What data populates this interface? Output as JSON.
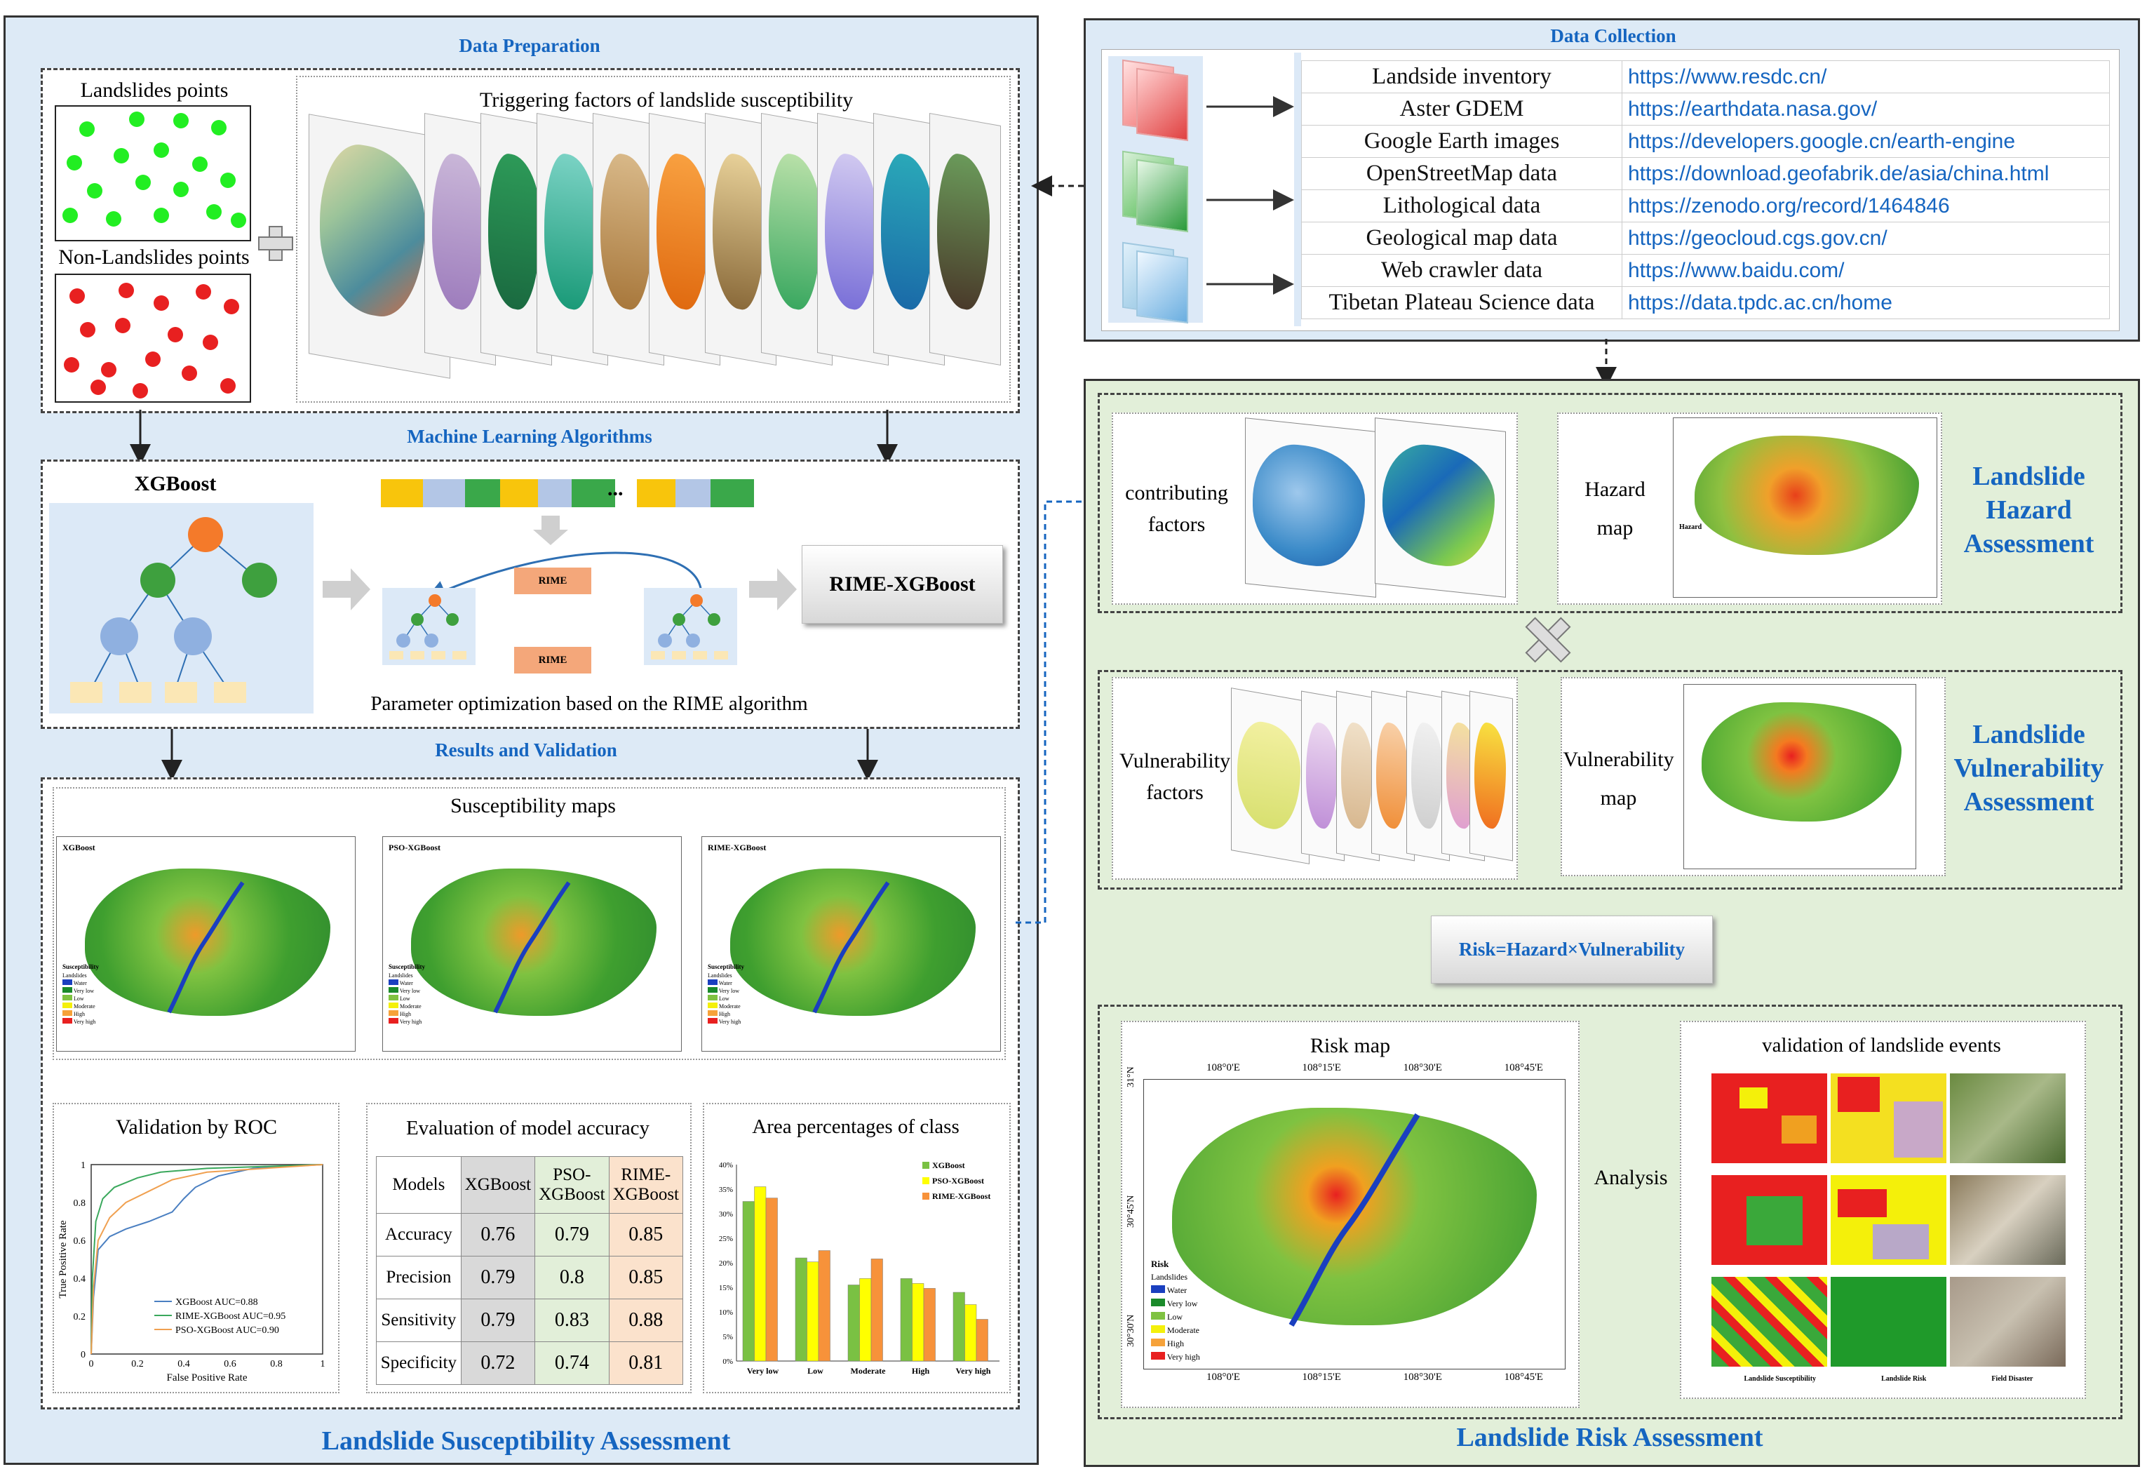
{
  "left": {
    "data_preparation": "Data Preparation",
    "landslide_points": "Landslides points",
    "non_landslide_points": "Non-Landslides points",
    "triggering_factors": "Triggering factors of landslide susceptibility",
    "ml_algorithms": "Machine Learning Algorithms",
    "xgboost": "XGBoost",
    "ellipsis": "...",
    "rime1": "RIME",
    "rime2": "RIME",
    "rime_xgboost": "RIME-XGBoost",
    "param_opt": "Parameter optimization  based on the RIME algorithm",
    "results_validation": "Results and Validation",
    "susceptibility_maps": "Susceptibility maps",
    "map_titles": [
      "XGBoost",
      "PSO-XGBoost",
      "RIME-XGBoost"
    ],
    "map_legend_title": "Susceptibility",
    "map_legend": [
      "Landslides",
      "Water",
      "Very low",
      "Low",
      "Moderate",
      "High",
      "Very high"
    ],
    "footer": "Landslide Susceptibility Assessment"
  },
  "roc": {
    "title": "Validation by ROC",
    "xlabel": "False Positive Rate",
    "ylabel": "True Positive Rate",
    "xticks": [
      "0",
      "0.2",
      "0.4",
      "0.6",
      "0.8",
      "1"
    ],
    "yticks": [
      "0",
      "0.2",
      "0.4",
      "0.6",
      "0.8",
      "1"
    ],
    "legend": [
      "XGBoost  AUC=0.88",
      "RIME-XGBoost  AUC=0.95",
      "PSO-XGBoost  AUC=0.90"
    ],
    "colors": [
      "#4a7fc1",
      "#3aa85c",
      "#f0a050"
    ]
  },
  "accuracy": {
    "title": "Evaluation of model accuracy",
    "headers": [
      "Models",
      "XGBoost",
      "PSO-\nXGBoost",
      "RIME-\nXGBoost"
    ],
    "rows": [
      [
        "Accuracy",
        "0.76",
        "0.79",
        "0.85"
      ],
      [
        "Precision",
        "0.79",
        "0.8",
        "0.85"
      ],
      [
        "Sensitivity",
        "0.79",
        "0.83",
        "0.88"
      ],
      [
        "Specificity",
        "0.72",
        "0.74",
        "0.81"
      ]
    ]
  },
  "chart_data": {
    "type": "bar",
    "title": "Area percentages of class",
    "categories": [
      "Very low",
      "Low",
      "Moderate",
      "High",
      "Very high"
    ],
    "series": [
      {
        "name": "XGBoost",
        "values": [
          32.5,
          21,
          15.5,
          16.8,
          14
        ],
        "color": "#7ac143"
      },
      {
        "name": "PSO-XGBoost",
        "values": [
          35.5,
          20.2,
          16.8,
          15.8,
          11.5
        ],
        "color": "#ffff00"
      },
      {
        "name": "RIME-XGBoost",
        "values": [
          33.2,
          22.5,
          20.8,
          14.8,
          8.5
        ],
        "color": "#f7923a"
      }
    ],
    "yticks": [
      "0%",
      "5%",
      "10%",
      "15%",
      "20%",
      "25%",
      "30%",
      "35%",
      "40%"
    ],
    "ylim": [
      0,
      40
    ]
  },
  "collection": {
    "title": "Data Collection",
    "sources": [
      {
        "name": "Landside inventory",
        "url": "https://www.resdc.cn/"
      },
      {
        "name": "Aster GDEM",
        "url": "https://earthdata.nasa.gov/"
      },
      {
        "name": "Google Earth images",
        "url": "https://developers.google.cn/earth-engine"
      },
      {
        "name": "OpenStreetMap data",
        "url": "https://download.geofabrik.de/asia/china.html"
      },
      {
        "name": "Lithological data",
        "url": "https://zenodo.org/record/1464846"
      },
      {
        "name": "Geological map data",
        "url": "https://geocloud.cgs.gov.cn/"
      },
      {
        "name": "Web crawler data",
        "url": "https://www.baidu.com/"
      },
      {
        "name": "Tibetan Plateau Science data",
        "url": "https://data.tpdc.ac.cn/home"
      }
    ]
  },
  "risk": {
    "contributing_factors": "contributing\nfactors",
    "hazard_map": "Hazard\nmap",
    "hazard_assessment": "Landslide\nHazard\nAssessment",
    "hazard_legend_title": "Hazard",
    "vulnerability_factors": "Vulnerability\nfactors",
    "vulnerability_map": "Vulnerability\nmap",
    "vulnerability_assessment": "Landslide\nVulnerability\nAssessment",
    "formula": "Risk=Hazard×Vulnerability",
    "risk_map": "Risk map",
    "risk_legend_title": "Risk",
    "risk_legend": [
      "Landslides",
      "Water",
      "Very low",
      "Low",
      "Moderate",
      "High",
      "Very high"
    ],
    "risk_top_ticks": [
      "108°0'E",
      "108°15'E",
      "108°30'E",
      "108°45'E"
    ],
    "risk_bottom_ticks": [
      "108°0'E",
      "108°15'E",
      "108°30'E",
      "108°45'E"
    ],
    "risk_left_ticks": [
      "31°N",
      "30°45'N",
      "30°30'N"
    ],
    "analysis": "Analysis",
    "validation_title": "validation of landslide events",
    "validation_labels": [
      "Landslide Susceptibility",
      "Landslide Risk",
      "Field Disaster"
    ],
    "footer": "Landslide Risk Assessment"
  }
}
